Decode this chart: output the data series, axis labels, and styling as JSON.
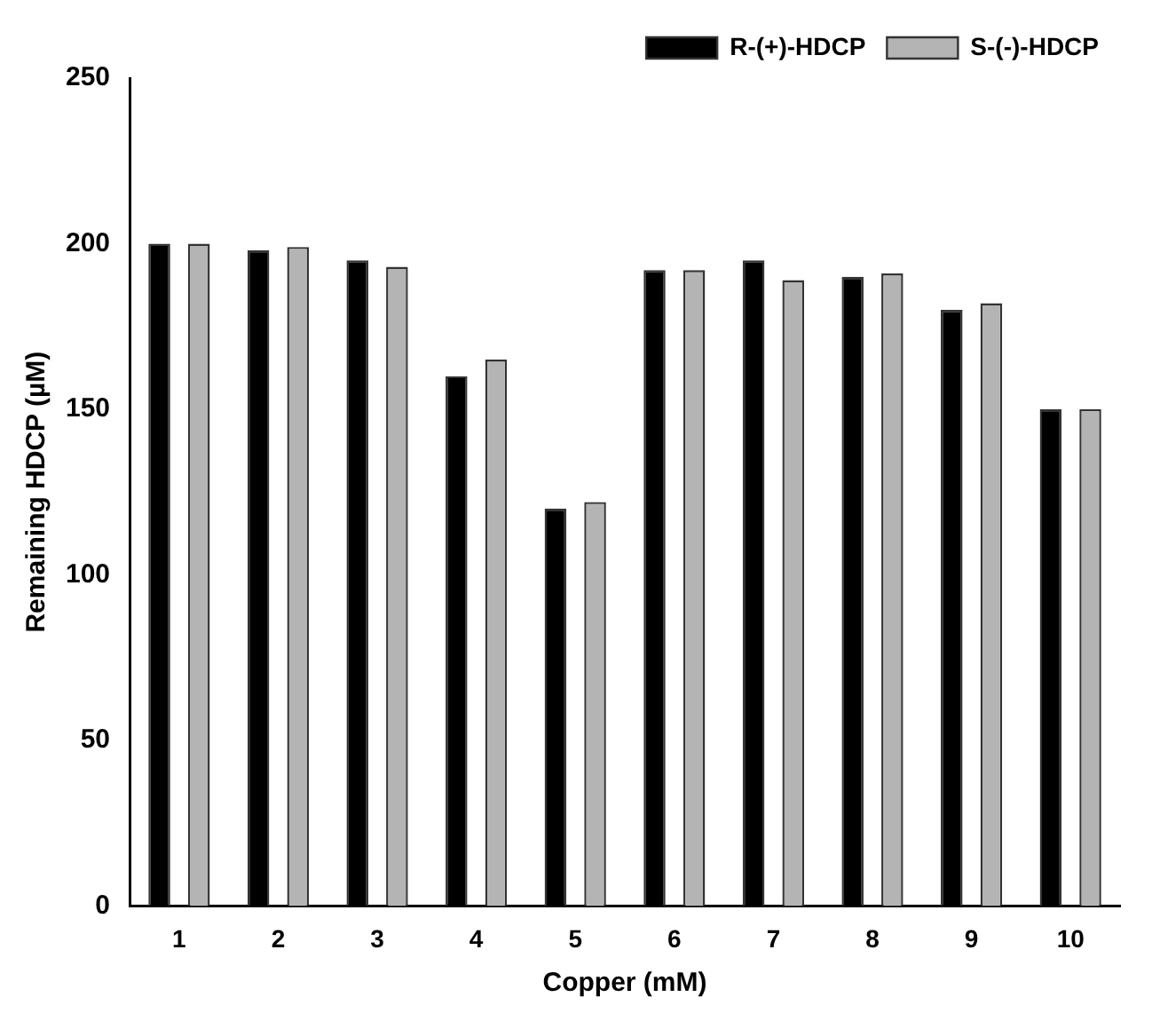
{
  "chart_data": {
    "type": "bar",
    "xlabel": "Copper (mM)",
    "ylabel": "Remaining HDCP (µM)",
    "categories": [
      "1",
      "2",
      "3",
      "4",
      "5",
      "6",
      "7",
      "8",
      "9",
      "10"
    ],
    "series": [
      {
        "name": "R-(+)-HDCP",
        "color": "#000000",
        "values": [
          200,
          198,
          195,
          160,
          120,
          192,
          195,
          190,
          180,
          150
        ]
      },
      {
        "name": "S-(-)-HDCP",
        "color": "#b4b4b4",
        "values": [
          200,
          199,
          193,
          165,
          122,
          192,
          189,
          191,
          182,
          150
        ]
      }
    ],
    "ylim": [
      0,
      250
    ],
    "yticks": [
      0,
      50,
      100,
      150,
      200,
      250
    ],
    "grid": false,
    "legend": "top right"
  }
}
